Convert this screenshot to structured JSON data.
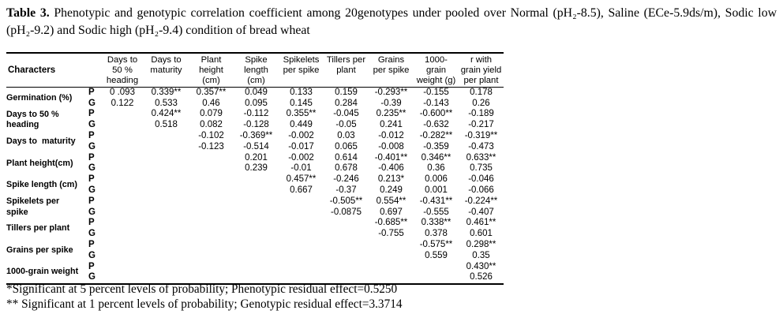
{
  "caption": {
    "label": "Table 3.",
    "text": " Phenotypic and genotypic correlation coefficient among 20genotypes under pooled over Normal (pH₂-8.5), Saline (ECe-5.9ds/m), Sodic low (pH₂-9.2) and Sodic high (pH₂-9.4) condition of bread wheat"
  },
  "table": {
    "row_header": "Characters",
    "columns": [
      "Days to\n50 %\nheading",
      "Days to\nmaturity",
      "Plant\nheight\n(cm)",
      "Spike\nlength\n(cm)",
      "Spikelets\nper spike",
      "Tillers per\nplant",
      "Grains\nper spike",
      "1000-\ngrain\nweight (g)",
      "r with\ngrain yield\nper plant"
    ],
    "rows": [
      {
        "character": "Germination (%)",
        "P": [
          "0 .093",
          "0.339**",
          "0.357**",
          "0.049",
          "0.133",
          "0.159",
          "-0.293**",
          "-0.155",
          "0.178"
        ],
        "G": [
          "0.122",
          "0.533",
          "0.46",
          "0.095",
          "0.145",
          "0.284",
          "-0.39",
          "-0.143",
          "0.26"
        ]
      },
      {
        "character": "Days to 50 %\nheading",
        "P": [
          "",
          "0.424**",
          "0.079",
          "-0.112",
          "0.355**",
          "-0.045",
          "0.235**",
          "-0.600**",
          "-0.189"
        ],
        "G": [
          "",
          "0.518",
          "0.082",
          "-0.128",
          "0.449",
          "-0.05",
          "0.241",
          "-0.632",
          "-0.217"
        ]
      },
      {
        "character": "Days to  maturity",
        "P": [
          "",
          "",
          "-0.102",
          "-0.369**",
          "-0.002",
          "0.03",
          "-0.012",
          "-0.282**",
          "-0.319**"
        ],
        "G": [
          "",
          "",
          "-0.123",
          "-0.514",
          "-0.017",
          "0.065",
          "-0.008",
          "-0.359",
          "-0.473"
        ]
      },
      {
        "character": "Plant height(cm)",
        "P": [
          "",
          "",
          "",
          "0.201",
          "-0.002",
          "0.614",
          "-0.401**",
          "0.346**",
          "0.633**"
        ],
        "G": [
          "",
          "",
          "",
          "0.239",
          "-0.01",
          "0.678",
          "-0.406",
          "0.36",
          "0.735"
        ]
      },
      {
        "character": "Spike length (cm)",
        "P": [
          "",
          "",
          "",
          "",
          "0.457**",
          "-0.246",
          "0.213*",
          "0.006",
          "-0.046"
        ],
        "G": [
          "",
          "",
          "",
          "",
          "0.667",
          "-0.37",
          "0.249",
          "0.001",
          "-0.066"
        ]
      },
      {
        "character": "Spikelets per\nspike",
        "P": [
          "",
          "",
          "",
          "",
          "",
          "-0.505**",
          "0.554**",
          "-0.431**",
          "-0.224**"
        ],
        "G": [
          "",
          "",
          "",
          "",
          "",
          "-0.0875",
          "0.697",
          "-0.555",
          "-0.407"
        ]
      },
      {
        "character": "Tillers per plant",
        "P": [
          "",
          "",
          "",
          "",
          "",
          "",
          "-0.685**",
          "0.338**",
          "0.461**"
        ],
        "G": [
          "",
          "",
          "",
          "",
          "",
          "",
          "-0.755",
          "0.378",
          "0.601"
        ]
      },
      {
        "character": "Grains per spike",
        "P": [
          "",
          "",
          "",
          "",
          "",
          "",
          "",
          "-0.575**",
          "0.298**"
        ],
        "G": [
          "",
          "",
          "",
          "",
          "",
          "",
          "",
          "0.559",
          "0.35"
        ]
      },
      {
        "character": "1000-grain weight",
        "P": [
          "",
          "",
          "",
          "",
          "",
          "",
          "",
          "",
          "0.430**"
        ],
        "G": [
          "",
          "",
          "",
          "",
          "",
          "",
          "",
          "",
          "0.526"
        ]
      }
    ]
  },
  "footnotes": [
    "*Significant at 5 percent levels of probability; Phenotypic residual effect=0.5250",
    "** Significant at 1 percent levels of probability; Genotypic residual effect=3.3714"
  ]
}
